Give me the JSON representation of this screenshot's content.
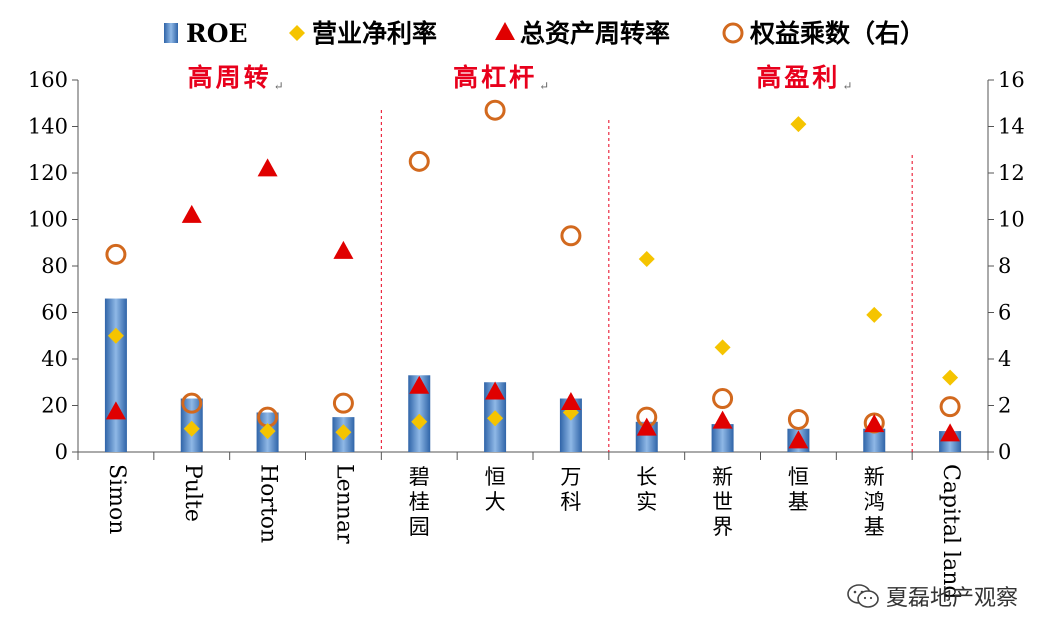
{
  "chart_data": {
    "type": "bar",
    "legend": {
      "placement": "top",
      "items": [
        "ROE",
        "营业净利率",
        "总资产周转率",
        "权益乘数（右）"
      ]
    },
    "categories": [
      "Simon",
      "Pulte",
      "Horton",
      "Lennar",
      "碧桂园",
      "恒大",
      "万科",
      "长实",
      "新世界",
      "恒基",
      "新鸿基",
      "Capital land"
    ],
    "series": [
      {
        "name": "ROE",
        "type": "bar",
        "axis": "left",
        "values": [
          66,
          23,
          17,
          15,
          33,
          30,
          23,
          13,
          12,
          10,
          10,
          9
        ]
      },
      {
        "name": "营业净利率",
        "type": "scatter",
        "marker": "diamond",
        "axis": "left",
        "values": [
          50,
          10,
          9,
          8.5,
          13,
          14.5,
          17,
          83,
          45,
          141,
          59,
          32
        ]
      },
      {
        "name": "总资产周转率",
        "type": "scatter",
        "marker": "triangle",
        "axis": "left",
        "values": [
          17.5,
          102,
          122,
          86.5,
          28.5,
          26,
          21.5,
          10.5,
          13.5,
          5,
          12,
          8
        ]
      },
      {
        "name": "权益乘数（右）",
        "type": "scatter",
        "marker": "circle",
        "axis": "right",
        "values": [
          8.5,
          2.1,
          1.5,
          2.1,
          12.5,
          14.7,
          9.3,
          1.5,
          2.3,
          1.4,
          1.25,
          1.95
        ]
      }
    ],
    "yleft": {
      "lim": [
        0,
        160
      ],
      "ticks": [
        "0",
        "20",
        "40",
        "60",
        "80",
        "100",
        "120",
        "140",
        "160"
      ]
    },
    "yright": {
      "lim": [
        0,
        16
      ],
      "ticks": [
        "0",
        "2",
        "4",
        "6",
        "8",
        "10",
        "12",
        "14",
        "16"
      ]
    },
    "groups": [
      {
        "label": "高周转",
        "from": 0,
        "to": 3
      },
      {
        "label": "高杠杆",
        "from": 4,
        "to": 6
      },
      {
        "label": "高盈利",
        "from": 7,
        "to": 11
      }
    ],
    "group_mark": "↵",
    "colors": {
      "bar": "#4a86c8",
      "diamond": "#f5c400",
      "triangle": "#e00000",
      "circle": "#d2691e",
      "group_label": "#e8001c",
      "separator": "#e8001c"
    }
  },
  "watermark": {
    "text": "夏磊地产观察",
    "icon": "wechat-icon"
  }
}
